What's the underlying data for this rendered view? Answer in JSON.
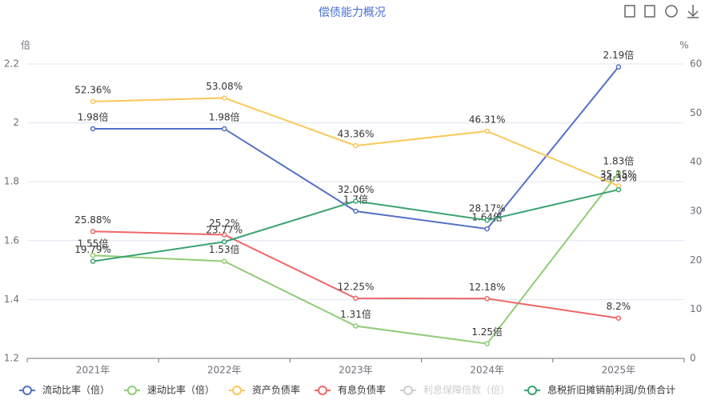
{
  "chart_data": {
    "type": "line",
    "title": "偿债能力概况",
    "y_label": "倍",
    "y2_label": "%",
    "categories": [
      "2021年",
      "2022年",
      "2023年",
      "2024年",
      "2025年"
    ],
    "ylim": [
      1.2,
      2.2
    ],
    "yticks": [
      1.2,
      1.4,
      1.6,
      1.8,
      2,
      2.2
    ],
    "y2lim": [
      0,
      60
    ],
    "y2ticks": [
      0,
      10,
      20,
      30,
      40,
      50,
      60
    ],
    "grid": true,
    "legend": "bottom",
    "series": [
      {
        "name": "流动比率（倍）",
        "color": "#5470c6",
        "values": [
          1.98,
          1.98,
          1.7,
          1.64,
          2.19
        ],
        "value_labels": [
          "1.98倍",
          "1.98倍",
          "1.7倍",
          "1.64倍",
          "2.19倍"
        ]
      },
      {
        "name": "速动比率（倍）",
        "color": "#91cc75",
        "values": [
          1.55,
          1.53,
          1.31,
          1.25,
          1.83
        ],
        "value_labels": [
          "1.55倍",
          "1.53倍",
          "1.31倍",
          "1.25倍",
          "1.83倍"
        ]
      },
      {
        "name": "资产负债率",
        "color": "#fac858",
        "axis": "y2",
        "values": [
          52.36,
          53.08,
          43.36,
          46.31,
          35.15
        ],
        "value_labels": [
          "52.36%",
          "53.08%",
          "43.36%",
          "46.31%",
          "35.15%"
        ]
      },
      {
        "name": "有息负债率",
        "color": "#ee6666",
        "axis": "y2",
        "values": [
          25.88,
          25.2,
          12.25,
          12.18,
          8.2
        ],
        "value_labels": [
          "25.88%",
          "25.2%",
          "12.25%",
          "12.18%",
          "8.2%"
        ]
      },
      {
        "name": "利息保障倍数（倍）",
        "color": "#cccccc",
        "visible": false,
        "values": [
          null,
          null,
          null,
          null,
          null
        ]
      },
      {
        "name": "息税折旧摊销前利润/负债合计",
        "color": "#3ba272",
        "axis": "y2",
        "values": [
          19.79,
          23.77,
          32.06,
          28.17,
          34.39
        ],
        "value_labels": [
          "19.79%",
          "23.77%",
          "32.06%",
          "28.17%",
          "34.39%"
        ]
      }
    ]
  }
}
